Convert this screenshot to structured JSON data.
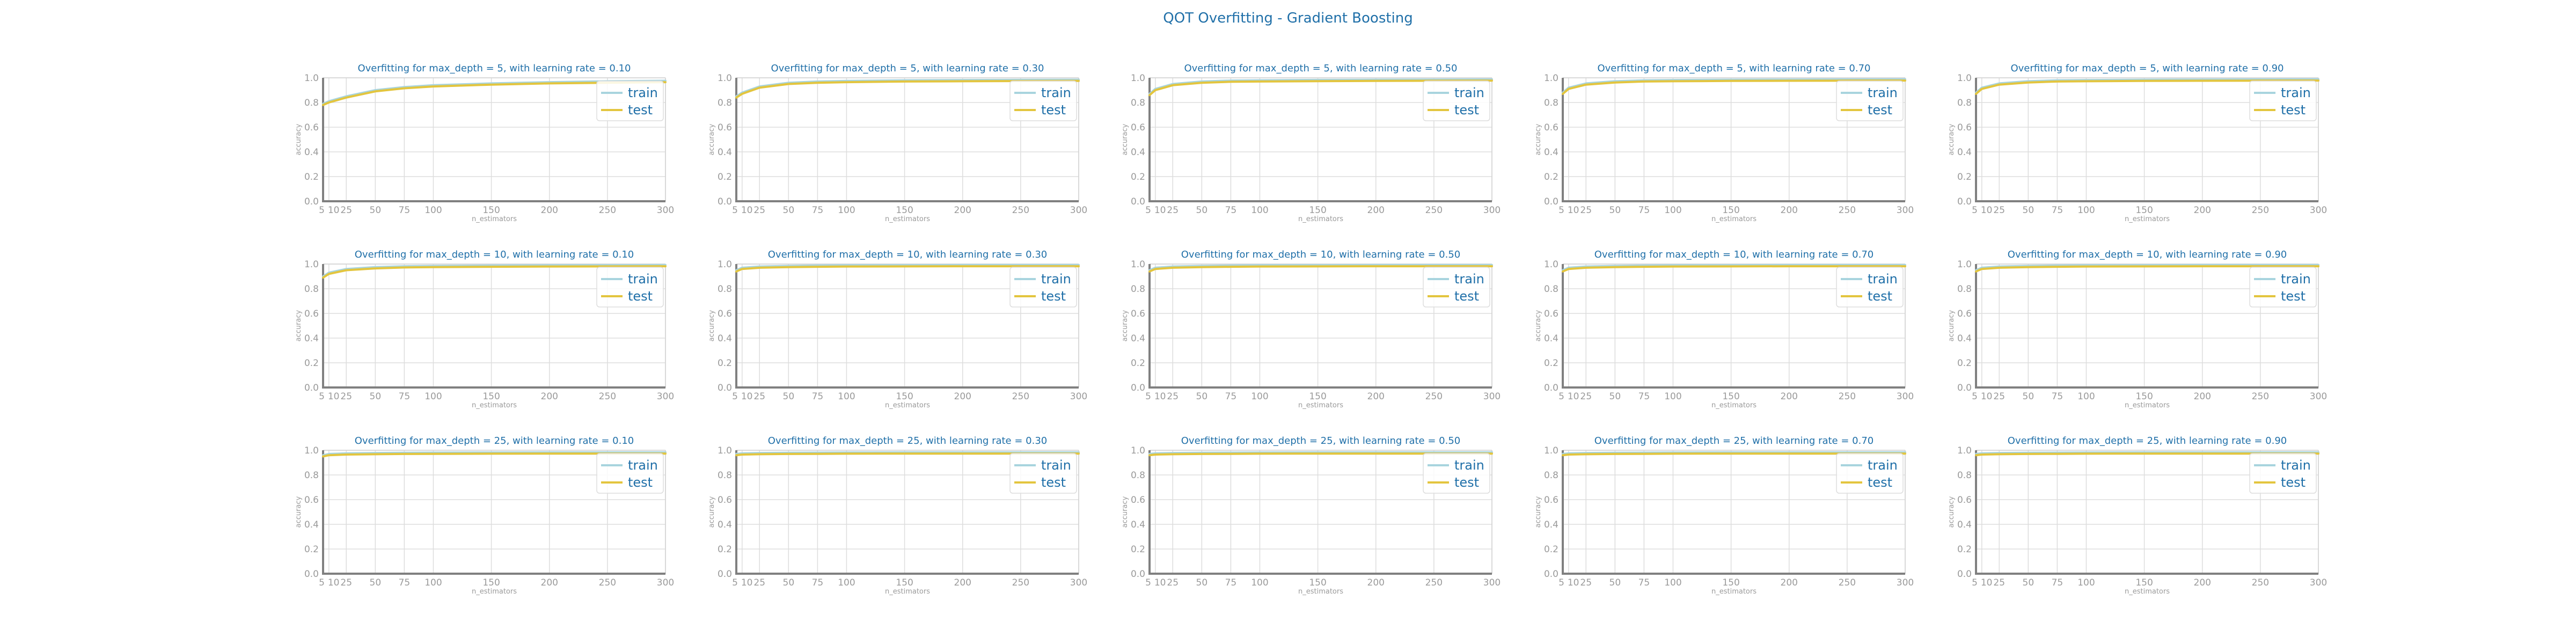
{
  "chart_data": {
    "title": "QOT Overfitting - Gradient Boosting",
    "type": "line",
    "grid": true,
    "legend_position": "upper right",
    "x_ticks": [
      5,
      10,
      25,
      50,
      75,
      100,
      150,
      200,
      250,
      300
    ],
    "y_ticks": [
      0.0,
      0.2,
      0.4,
      0.6,
      0.8,
      1.0
    ],
    "xlim": [
      5,
      300
    ],
    "ylim": [
      0.0,
      1.0
    ],
    "colors": {
      "train": "#a8d4de",
      "test": "#e3c53e"
    },
    "panels": [
      {
        "title": "Overfitting for max_depth = 5, with learning rate = 0.10",
        "xlabel": "n_estimators",
        "ylabel": "accuracy",
        "x": [
          5,
          10,
          25,
          50,
          75,
          100,
          150,
          200,
          250,
          300
        ],
        "series": [
          {
            "name": "train",
            "values": [
              0.79,
              0.81,
              0.85,
              0.9,
              0.925,
              0.94,
              0.955,
              0.965,
              0.972,
              0.976
            ]
          },
          {
            "name": "test",
            "values": [
              0.78,
              0.8,
              0.84,
              0.89,
              0.915,
              0.93,
              0.945,
              0.955,
              0.96,
              0.965
            ]
          }
        ]
      },
      {
        "title": "Overfitting for max_depth = 5, with learning rate = 0.30",
        "xlabel": "n_estimators",
        "ylabel": "accuracy",
        "x": [
          5,
          10,
          25,
          50,
          75,
          100,
          150,
          200,
          250,
          300
        ],
        "series": [
          {
            "name": "train",
            "values": [
              0.85,
              0.88,
              0.93,
              0.96,
              0.97,
              0.975,
              0.98,
              0.982,
              0.984,
              0.985
            ]
          },
          {
            "name": "test",
            "values": [
              0.84,
              0.87,
              0.92,
              0.95,
              0.96,
              0.965,
              0.97,
              0.972,
              0.974,
              0.975
            ]
          }
        ]
      },
      {
        "title": "Overfitting for max_depth = 5, with learning rate = 0.50",
        "xlabel": "n_estimators",
        "ylabel": "accuracy",
        "x": [
          5,
          10,
          25,
          50,
          75,
          100,
          150,
          200,
          250,
          300
        ],
        "series": [
          {
            "name": "train",
            "values": [
              0.87,
              0.91,
              0.95,
              0.97,
              0.978,
              0.98,
              0.983,
              0.985,
              0.986,
              0.987
            ]
          },
          {
            "name": "test",
            "values": [
              0.86,
              0.9,
              0.94,
              0.96,
              0.968,
              0.97,
              0.973,
              0.975,
              0.976,
              0.977
            ]
          }
        ]
      },
      {
        "title": "Overfitting for max_depth = 5, with learning rate = 0.70",
        "xlabel": "n_estimators",
        "ylabel": "accuracy",
        "x": [
          5,
          10,
          25,
          50,
          75,
          100,
          150,
          200,
          250,
          300
        ],
        "series": [
          {
            "name": "train",
            "values": [
              0.88,
              0.92,
              0.955,
              0.972,
              0.98,
              0.982,
              0.985,
              0.986,
              0.987,
              0.988
            ]
          },
          {
            "name": "test",
            "values": [
              0.87,
              0.91,
              0.945,
              0.962,
              0.97,
              0.972,
              0.975,
              0.976,
              0.977,
              0.978
            ]
          }
        ]
      },
      {
        "title": "Overfitting for max_depth = 5, with learning rate = 0.90",
        "xlabel": "n_estimators",
        "ylabel": "accuracy",
        "x": [
          5,
          10,
          25,
          50,
          75,
          100,
          150,
          200,
          250,
          300
        ],
        "series": [
          {
            "name": "train",
            "values": [
              0.88,
              0.92,
              0.955,
              0.972,
              0.98,
              0.982,
              0.985,
              0.986,
              0.987,
              0.988
            ]
          },
          {
            "name": "test",
            "values": [
              0.87,
              0.91,
              0.945,
              0.962,
              0.97,
              0.972,
              0.975,
              0.976,
              0.977,
              0.978
            ]
          }
        ]
      },
      {
        "title": "Overfitting for max_depth = 10, with learning rate = 0.10",
        "xlabel": "n_estimators",
        "ylabel": "accuracy",
        "x": [
          5,
          10,
          25,
          50,
          75,
          100,
          150,
          200,
          250,
          300
        ],
        "series": [
          {
            "name": "train",
            "values": [
              0.9,
              0.93,
              0.96,
              0.975,
              0.982,
              0.985,
              0.988,
              0.99,
              0.991,
              0.992
            ]
          },
          {
            "name": "test",
            "values": [
              0.89,
              0.92,
              0.95,
              0.965,
              0.972,
              0.975,
              0.978,
              0.98,
              0.981,
              0.982
            ]
          }
        ]
      },
      {
        "title": "Overfitting for max_depth = 10, with learning rate = 0.30",
        "xlabel": "n_estimators",
        "ylabel": "accuracy",
        "x": [
          5,
          10,
          25,
          50,
          75,
          100,
          150,
          200,
          250,
          300
        ],
        "series": [
          {
            "name": "train",
            "values": [
              0.95,
              0.97,
              0.98,
              0.985,
              0.988,
              0.99,
              0.991,
              0.992,
              0.992,
              0.992
            ]
          },
          {
            "name": "test",
            "values": [
              0.94,
              0.96,
              0.97,
              0.975,
              0.978,
              0.98,
              0.981,
              0.982,
              0.982,
              0.982
            ]
          }
        ]
      },
      {
        "title": "Overfitting for max_depth = 10, with learning rate = 0.50",
        "xlabel": "n_estimators",
        "ylabel": "accuracy",
        "x": [
          5,
          10,
          25,
          50,
          75,
          100,
          150,
          200,
          250,
          300
        ],
        "series": [
          {
            "name": "train",
            "values": [
              0.95,
              0.97,
              0.98,
              0.985,
              0.988,
              0.99,
              0.991,
              0.992,
              0.992,
              0.992
            ]
          },
          {
            "name": "test",
            "values": [
              0.94,
              0.96,
              0.97,
              0.975,
              0.978,
              0.98,
              0.981,
              0.982,
              0.982,
              0.982
            ]
          }
        ]
      },
      {
        "title": "Overfitting for max_depth = 10, with learning rate = 0.70",
        "xlabel": "n_estimators",
        "ylabel": "accuracy",
        "x": [
          5,
          10,
          25,
          50,
          75,
          100,
          150,
          200,
          250,
          300
        ],
        "series": [
          {
            "name": "train",
            "values": [
              0.95,
              0.97,
              0.98,
              0.985,
              0.988,
              0.99,
              0.991,
              0.992,
              0.992,
              0.992
            ]
          },
          {
            "name": "test",
            "values": [
              0.94,
              0.96,
              0.97,
              0.975,
              0.978,
              0.98,
              0.981,
              0.982,
              0.982,
              0.982
            ]
          }
        ]
      },
      {
        "title": "Overfitting for max_depth = 10, with learning rate = 0.90",
        "xlabel": "n_estimators",
        "ylabel": "accuracy",
        "x": [
          5,
          10,
          25,
          50,
          75,
          100,
          150,
          200,
          250,
          300
        ],
        "series": [
          {
            "name": "train",
            "values": [
              0.95,
              0.97,
              0.98,
              0.985,
              0.988,
              0.99,
              0.991,
              0.992,
              0.992,
              0.992
            ]
          },
          {
            "name": "test",
            "values": [
              0.94,
              0.96,
              0.97,
              0.975,
              0.978,
              0.98,
              0.981,
              0.982,
              0.982,
              0.982
            ]
          }
        ]
      },
      {
        "title": "Overfitting for max_depth = 25, with learning rate = 0.10",
        "xlabel": "n_estimators",
        "ylabel": "accuracy",
        "x": [
          5,
          10,
          25,
          50,
          75,
          100,
          150,
          200,
          250,
          300
        ],
        "series": [
          {
            "name": "train",
            "values": [
              0.96,
              0.97,
              0.975,
              0.978,
              0.98,
              0.981,
              0.982,
              0.983,
              0.983,
              0.983
            ]
          },
          {
            "name": "test",
            "values": [
              0.95,
              0.96,
              0.965,
              0.968,
              0.97,
              0.971,
              0.972,
              0.973,
              0.973,
              0.973
            ]
          }
        ]
      },
      {
        "title": "Overfitting for max_depth = 25, with learning rate = 0.30",
        "xlabel": "n_estimators",
        "ylabel": "accuracy",
        "x": [
          5,
          10,
          25,
          50,
          75,
          100,
          150,
          200,
          250,
          300
        ],
        "series": [
          {
            "name": "train",
            "values": [
              0.97,
              0.975,
              0.978,
              0.98,
              0.981,
              0.982,
              0.983,
              0.983,
              0.983,
              0.983
            ]
          },
          {
            "name": "test",
            "values": [
              0.96,
              0.965,
              0.968,
              0.97,
              0.971,
              0.972,
              0.973,
              0.973,
              0.973,
              0.973
            ]
          }
        ]
      },
      {
        "title": "Overfitting for max_depth = 25, with learning rate = 0.50",
        "xlabel": "n_estimators",
        "ylabel": "accuracy",
        "x": [
          5,
          10,
          25,
          50,
          75,
          100,
          150,
          200,
          250,
          300
        ],
        "series": [
          {
            "name": "train",
            "values": [
              0.97,
              0.975,
              0.978,
              0.98,
              0.981,
              0.982,
              0.983,
              0.983,
              0.983,
              0.983
            ]
          },
          {
            "name": "test",
            "values": [
              0.96,
              0.965,
              0.968,
              0.97,
              0.971,
              0.972,
              0.973,
              0.973,
              0.973,
              0.973
            ]
          }
        ]
      },
      {
        "title": "Overfitting for max_depth = 25, with learning rate = 0.70",
        "xlabel": "n_estimators",
        "ylabel": "accuracy",
        "x": [
          5,
          10,
          25,
          50,
          75,
          100,
          150,
          200,
          250,
          300
        ],
        "series": [
          {
            "name": "train",
            "values": [
              0.97,
              0.975,
              0.978,
              0.98,
              0.981,
              0.982,
              0.983,
              0.983,
              0.983,
              0.983
            ]
          },
          {
            "name": "test",
            "values": [
              0.96,
              0.965,
              0.968,
              0.97,
              0.971,
              0.972,
              0.973,
              0.973,
              0.973,
              0.973
            ]
          }
        ]
      },
      {
        "title": "Overfitting for max_depth = 25, with learning rate = 0.90",
        "xlabel": "n_estimators",
        "ylabel": "accuracy",
        "x": [
          5,
          10,
          25,
          50,
          75,
          100,
          150,
          200,
          250,
          300
        ],
        "series": [
          {
            "name": "train",
            "values": [
              0.97,
              0.975,
              0.978,
              0.98,
              0.981,
              0.982,
              0.983,
              0.983,
              0.983,
              0.983
            ]
          },
          {
            "name": "test",
            "values": [
              0.96,
              0.965,
              0.968,
              0.97,
              0.971,
              0.972,
              0.973,
              0.973,
              0.973,
              0.973
            ]
          }
        ]
      }
    ]
  }
}
